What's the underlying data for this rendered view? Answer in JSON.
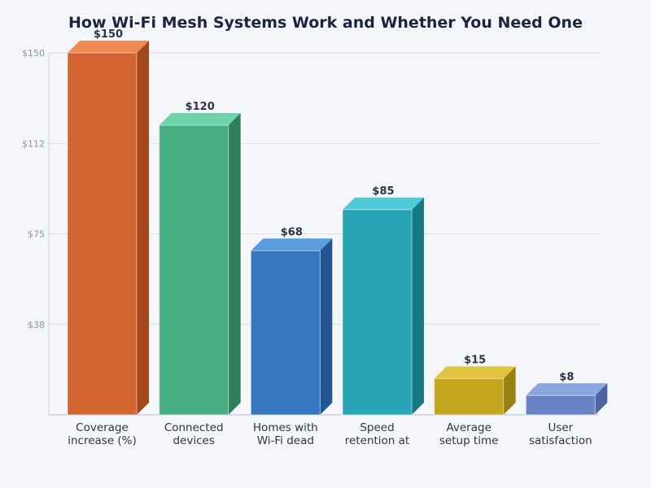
{
  "chart_data": {
    "type": "bar",
    "title": "How Wi-Fi Mesh Systems Work and Whether You Need One",
    "xlabel": "",
    "ylabel": "",
    "ylim": [
      0,
      150
    ],
    "yticks": [
      {
        "value": 37.5,
        "label": "$38"
      },
      {
        "value": 75,
        "label": "$75"
      },
      {
        "value": 112.5,
        "label": "$112"
      },
      {
        "value": 150,
        "label": "$150"
      }
    ],
    "grid": true,
    "style": "3d",
    "categories": [
      [
        "Coverage",
        "increase (%)"
      ],
      [
        "Connected",
        "devices"
      ],
      [
        "Homes with",
        "Wi-Fi dead"
      ],
      [
        "Speed",
        "retention at"
      ],
      [
        "Average",
        "setup time"
      ],
      [
        "User",
        "satisfaction"
      ]
    ],
    "values": [
      150,
      120,
      68,
      85,
      15,
      8
    ],
    "data_labels": [
      "$150",
      "$120",
      "$68",
      "$85",
      "$15",
      "$8"
    ],
    "colors": [
      {
        "front": "#d2652f",
        "top": "#ee8a52",
        "side": "#a4471a"
      },
      {
        "front": "#48ad83",
        "top": "#6dd3aa",
        "side": "#2e7f58"
      },
      {
        "front": "#3578c1",
        "top": "#5a9ce0",
        "side": "#235590"
      },
      {
        "front": "#27a5b4",
        "top": "#4dcbd8",
        "side": "#167a85"
      },
      {
        "front": "#c4a51e",
        "top": "#e2c43e",
        "side": "#9a8010"
      },
      {
        "front": "#6a83c4",
        "top": "#8aa6e0",
        "side": "#4c64a0"
      }
    ]
  }
}
